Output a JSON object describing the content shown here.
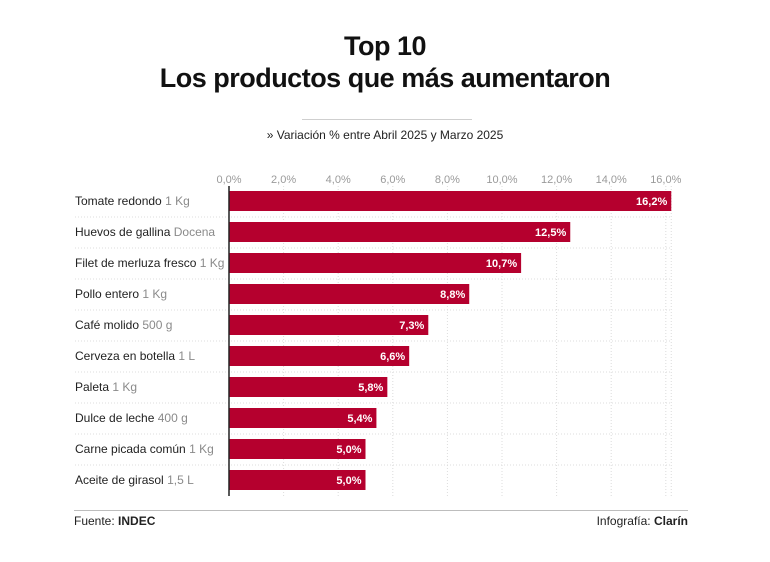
{
  "title_line1": "Top 10",
  "title_line2": "Los productos que más aumentaron",
  "subtitle": "» Variación % entre Abril 2025 y Marzo 2025",
  "footer": {
    "source_label": "Fuente:",
    "source_value": "INDEC",
    "credit_label": "Infografía:",
    "credit_value": "Clarín"
  },
  "colors": {
    "bar": "#b5002e",
    "unit_text": "#8a8a8a",
    "tick_text": "#9a9a9a",
    "grid": "#dcdcdc"
  },
  "chart_data": {
    "type": "bar",
    "orientation": "horizontal",
    "categories": [
      {
        "name": "Tomate redondo",
        "unit": "1 Kg"
      },
      {
        "name": "Huevos de gallina",
        "unit": "Docena"
      },
      {
        "name": "Filet de merluza fresco",
        "unit": "1 Kg"
      },
      {
        "name": "Pollo entero",
        "unit": "1 Kg"
      },
      {
        "name": "Café molido",
        "unit": "500 g"
      },
      {
        "name": "Cerveza en botella",
        "unit": "1 L"
      },
      {
        "name": "Paleta",
        "unit": "1 Kg"
      },
      {
        "name": "Dulce de leche",
        "unit": "400 g"
      },
      {
        "name": "Carne picada común",
        "unit": "1 Kg"
      },
      {
        "name": "Aceite de girasol",
        "unit": "1,5 L"
      }
    ],
    "values": [
      16.2,
      12.5,
      10.7,
      8.8,
      7.3,
      6.6,
      5.8,
      5.4,
      5.0,
      5.0
    ],
    "value_labels": [
      "16,2%",
      "12,5%",
      "10,7%",
      "8,8%",
      "7,3%",
      "6,6%",
      "5,8%",
      "5,4%",
      "5,0%",
      "5,0%"
    ],
    "xlim": [
      0,
      16.2
    ],
    "x_ticks": [
      0,
      2,
      4,
      6,
      8,
      10,
      12,
      14,
      16
    ],
    "x_tick_labels": [
      "0,0%",
      "2,0%",
      "4,0%",
      "6,0%",
      "8,0%",
      "10,0%",
      "12,0%",
      "14,0%",
      "16,0%"
    ],
    "grid": true
  }
}
